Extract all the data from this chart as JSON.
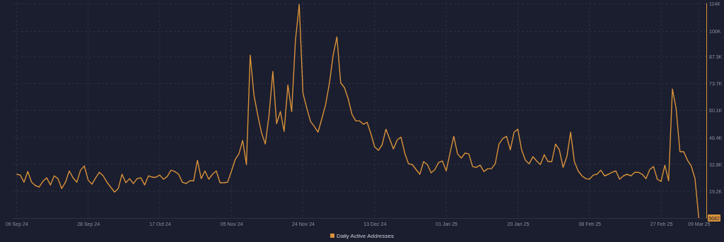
{
  "chart_data": {
    "type": "line",
    "x": [
      "2024-09-09",
      "2024-09-10",
      "2024-09-11",
      "2024-09-12",
      "2024-09-13",
      "2024-09-14",
      "2024-09-15",
      "2024-09-16",
      "2024-09-17",
      "2024-09-18",
      "2024-09-19",
      "2024-09-20",
      "2024-09-21",
      "2024-09-22",
      "2024-09-23",
      "2024-09-24",
      "2024-09-25",
      "2024-09-26",
      "2024-09-27",
      "2024-09-28",
      "2024-09-29",
      "2024-09-30",
      "2024-10-01",
      "2024-10-02",
      "2024-10-03",
      "2024-10-04",
      "2024-10-05",
      "2024-10-06",
      "2024-10-07",
      "2024-10-08",
      "2024-10-09",
      "2024-10-10",
      "2024-10-11",
      "2024-10-12",
      "2024-10-13",
      "2024-10-14",
      "2024-10-15",
      "2024-10-16",
      "2024-10-17",
      "2024-10-18",
      "2024-10-19",
      "2024-10-20",
      "2024-10-21",
      "2024-10-22",
      "2024-10-23",
      "2024-10-24",
      "2024-10-25",
      "2024-10-26",
      "2024-10-27",
      "2024-10-28",
      "2024-10-29",
      "2024-10-30",
      "2024-10-31",
      "2024-11-01",
      "2024-11-02",
      "2024-11-03",
      "2024-11-04",
      "2024-11-05",
      "2024-11-06",
      "2024-11-07",
      "2024-11-08",
      "2024-11-09",
      "2024-11-10",
      "2024-11-11",
      "2024-11-12",
      "2024-11-13",
      "2024-11-14",
      "2024-11-15",
      "2024-11-16",
      "2024-11-17",
      "2024-11-18",
      "2024-11-19",
      "2024-11-20",
      "2024-11-21",
      "2024-11-22",
      "2024-11-23",
      "2024-11-24",
      "2024-11-25",
      "2024-11-26",
      "2024-11-27",
      "2024-11-28",
      "2024-11-29",
      "2024-11-30",
      "2024-12-01",
      "2024-12-02",
      "2024-12-03",
      "2024-12-04",
      "2024-12-05",
      "2024-12-06",
      "2024-12-07",
      "2024-12-08",
      "2024-12-09",
      "2024-12-10",
      "2024-12-11",
      "2024-12-12",
      "2024-12-13",
      "2024-12-14",
      "2024-12-15",
      "2024-12-16",
      "2024-12-17",
      "2024-12-18",
      "2024-12-19",
      "2024-12-20",
      "2024-12-21",
      "2024-12-22",
      "2024-12-23",
      "2024-12-24",
      "2024-12-25",
      "2024-12-26",
      "2024-12-27",
      "2024-12-28",
      "2024-12-29",
      "2024-12-30",
      "2024-12-31",
      "2025-01-01",
      "2025-01-02",
      "2025-01-03",
      "2025-01-04",
      "2025-01-05",
      "2025-01-06",
      "2025-01-07",
      "2025-01-08",
      "2025-01-09",
      "2025-01-10",
      "2025-01-11",
      "2025-01-12",
      "2025-01-13",
      "2025-01-14",
      "2025-01-15",
      "2025-01-16",
      "2025-01-17",
      "2025-01-18",
      "2025-01-19",
      "2025-01-20",
      "2025-01-21",
      "2025-01-22",
      "2025-01-23",
      "2025-01-24",
      "2025-01-25",
      "2025-01-26",
      "2025-01-27",
      "2025-01-28",
      "2025-01-29",
      "2025-01-30",
      "2025-01-31",
      "2025-02-01",
      "2025-02-02",
      "2025-02-03",
      "2025-02-04",
      "2025-02-05",
      "2025-02-06",
      "2025-02-07",
      "2025-02-08",
      "2025-02-09",
      "2025-02-10",
      "2025-02-11",
      "2025-02-12",
      "2025-02-13",
      "2025-02-14",
      "2025-02-15",
      "2025-02-16",
      "2025-02-17",
      "2025-02-18",
      "2025-02-19",
      "2025-02-20",
      "2025-02-21",
      "2025-02-22",
      "2025-02-23",
      "2025-02-24",
      "2025-02-25",
      "2025-02-26",
      "2025-02-27",
      "2025-02-28",
      "2025-03-01",
      "2025-03-02",
      "2025-03-03",
      "2025-03-04",
      "2025-03-05",
      "2025-03-06",
      "2025-03-07",
      "2025-03-08",
      "2025-03-09"
    ],
    "series": [
      {
        "name": "Daily Active Addresses",
        "color": "#d9923a",
        "values": [
          27800,
          27400,
          23800,
          29200,
          23800,
          22100,
          21300,
          24200,
          26000,
          22400,
          27000,
          25600,
          20600,
          23800,
          29500,
          26000,
          23800,
          29900,
          32000,
          24900,
          22800,
          26000,
          28800,
          27000,
          23800,
          21300,
          18800,
          20600,
          27800,
          23500,
          25600,
          23100,
          25600,
          26000,
          22400,
          27000,
          26300,
          26300,
          27400,
          25300,
          26700,
          29900,
          29200,
          27800,
          23800,
          23100,
          24500,
          24500,
          34900,
          25600,
          29500,
          25300,
          27800,
          29500,
          23500,
          23500,
          23800,
          29200,
          35200,
          38100,
          44900,
          32700,
          88000,
          67700,
          57700,
          48800,
          43100,
          57700,
          79800,
          53400,
          59500,
          49500,
          73000,
          59500,
          95500,
          113700,
          68800,
          61300,
          54500,
          52000,
          49100,
          55900,
          63000,
          73700,
          88000,
          97300,
          74100,
          71600,
          65900,
          58100,
          54800,
          54800,
          53100,
          54100,
          48400,
          41700,
          39900,
          42700,
          50600,
          45600,
          40600,
          45200,
          46600,
          38500,
          33100,
          32700,
          30200,
          27800,
          34200,
          32700,
          28500,
          30200,
          33800,
          34500,
          29500,
          38500,
          47000,
          38100,
          36000,
          38500,
          38100,
          31700,
          31300,
          32400,
          29200,
          30600,
          30600,
          33100,
          43100,
          45900,
          47000,
          40200,
          49100,
          50600,
          40200,
          34900,
          33100,
          36700,
          34500,
          32700,
          37700,
          34200,
          34200,
          43100,
          40200,
          31300,
          36700,
          49100,
          34200,
          29500,
          27000,
          25600,
          25300,
          27400,
          27800,
          29900,
          27000,
          27800,
          28800,
          29500,
          25300,
          27000,
          27800,
          27000,
          28800,
          28800,
          27800,
          25600,
          30200,
          31700,
          25300,
          24200,
          32400,
          24500,
          70900,
          60900,
          39200,
          39200,
          34900,
          32000,
          25600,
          5682
        ]
      }
    ],
    "xlim": [
      "2024-09-08",
      "2025-03-11"
    ],
    "xticks": [
      {
        "value": "2024-09-09",
        "label": "09 Sep 24"
      },
      {
        "value": "2024-09-28",
        "label": "28 Sep 24"
      },
      {
        "value": "2024-10-17",
        "label": "17 Oct 24"
      },
      {
        "value": "2024-11-05",
        "label": "05 Nov 24"
      },
      {
        "value": "2024-11-24",
        "label": "24 Nov 24"
      },
      {
        "value": "2024-12-13",
        "label": "13 Dec 24"
      },
      {
        "value": "2025-01-01",
        "label": "01 Jan 25"
      },
      {
        "value": "2025-01-20",
        "label": "20 Jan 25"
      },
      {
        "value": "2025-02-08",
        "label": "08 Feb 25"
      },
      {
        "value": "2025-02-27",
        "label": "27 Feb 25"
      },
      {
        "value": "2025-03-09",
        "label": "09 Mar 25"
      }
    ],
    "ylim": [
      5682,
      114506
    ],
    "yticks": [
      {
        "value": 19200,
        "label": "19.2K"
      },
      {
        "value": 32800,
        "label": "32.8K"
      },
      {
        "value": 46400,
        "label": "46.4K"
      },
      {
        "value": 60100,
        "label": "60.1K"
      },
      {
        "value": 73700,
        "label": "73.7K"
      },
      {
        "value": 87300,
        "label": "87.3K"
      },
      {
        "value": 100000,
        "label": "100K"
      },
      {
        "value": 114000,
        "label": "114K"
      }
    ],
    "annotations": [
      {
        "text": "5682",
        "x": "2025-03-09",
        "y": 5682
      }
    ],
    "grid": true,
    "legend": "bottom",
    "line_style": "solid",
    "marker": "none"
  }
}
